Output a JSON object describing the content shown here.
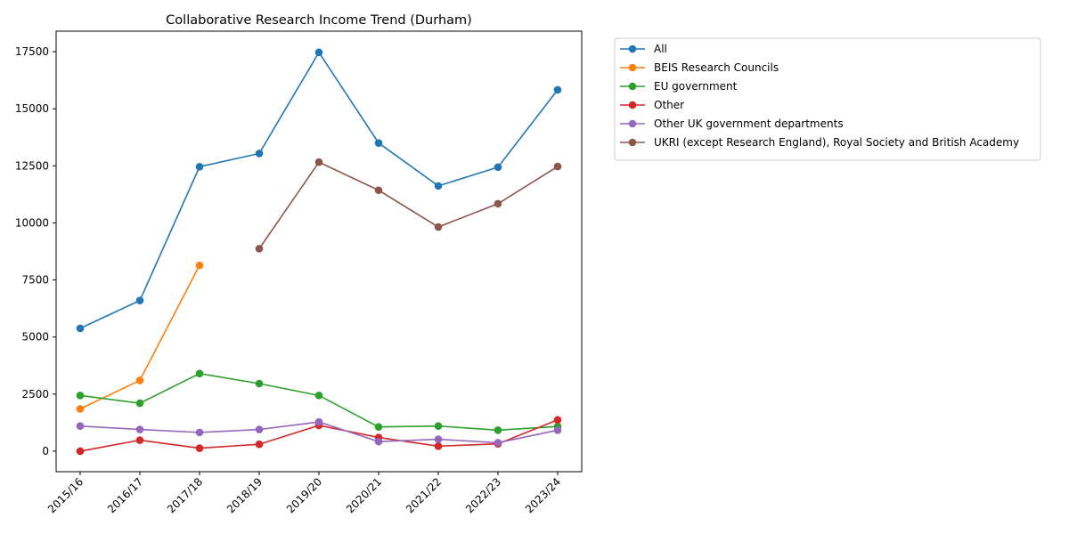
{
  "chart_data": {
    "type": "line",
    "title": "Collaborative Research Income Trend (Durham)",
    "xlabel": "",
    "ylabel": "",
    "categories": [
      "2015/16",
      "2016/17",
      "2017/18",
      "2018/19",
      "2019/20",
      "2020/21",
      "2021/22",
      "2022/23",
      "2023/24"
    ],
    "ylim": [
      -900,
      18400
    ],
    "yticks": [
      0,
      2500,
      5000,
      7500,
      10000,
      12500,
      15000,
      17500
    ],
    "grid": false,
    "legend_position": "outside-top-right",
    "series": [
      {
        "name": "All",
        "color": "#1f77b4",
        "values": [
          5380,
          6600,
          12460,
          13040,
          17470,
          13500,
          11620,
          12440,
          15830
        ]
      },
      {
        "name": "BEIS Research Councils",
        "color": "#ff7f0e",
        "values": [
          1850,
          3100,
          8140,
          null,
          null,
          null,
          null,
          null,
          null
        ]
      },
      {
        "name": "EU government",
        "color": "#2ca02c",
        "values": [
          2440,
          2100,
          3400,
          2960,
          2440,
          1060,
          1100,
          920,
          1080
        ]
      },
      {
        "name": "Other",
        "color": "#d62728",
        "values": [
          0,
          480,
          130,
          300,
          1130,
          600,
          220,
          320,
          1370
        ]
      },
      {
        "name": "Other UK government departments",
        "color": "#9467bd",
        "values": [
          1100,
          950,
          820,
          950,
          1280,
          420,
          520,
          370,
          920
        ]
      },
      {
        "name": "UKRI (except Research England), Royal Society and British Academy",
        "color": "#8c564b",
        "values": [
          null,
          null,
          null,
          8870,
          12660,
          11430,
          9820,
          10840,
          12470
        ]
      }
    ]
  }
}
